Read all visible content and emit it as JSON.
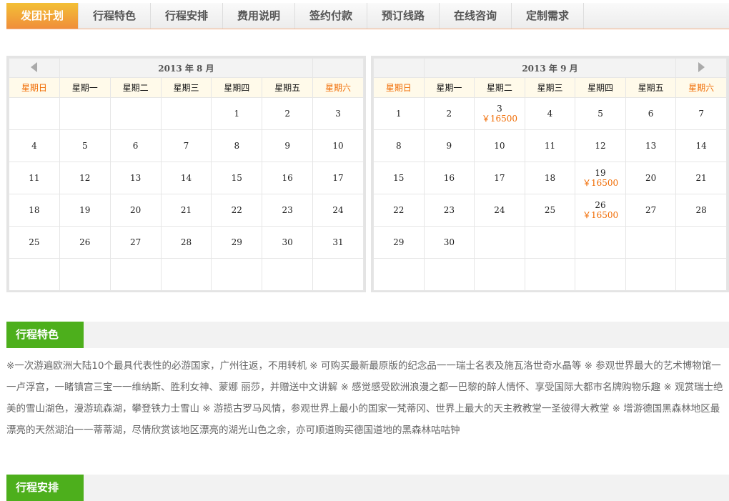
{
  "tabs": [
    "发团计划",
    "行程特色",
    "行程安排",
    "费用说明",
    "签约付款",
    "预订线路",
    "在线咨询",
    "定制需求"
  ],
  "weekdays": [
    "星期日",
    "星期一",
    "星期二",
    "星期三",
    "星期四",
    "星期五",
    "星期六"
  ],
  "calendars": [
    {
      "title": "2013 年  8 月",
      "nav": "prev",
      "start": 4,
      "days": 31,
      "prices": {}
    },
    {
      "title": "2013 年  9 月",
      "nav": "next",
      "start": 0,
      "days": 30,
      "prices": {
        "3": "￥16500",
        "19": "￥16500",
        "26": "￥16500"
      }
    }
  ],
  "colors": {
    "accent": "#f08e3a",
    "section": "#4daf1c",
    "weekend": "#f06a00"
  },
  "sections": {
    "features_title": "行程特色",
    "schedule_title": "行程安排"
  },
  "features_text": "※一次游遍欧洲大陆10个最具代表性的必游国家，广州往返，不用转机 ※ 可购买最新最原版的纪念品一一瑞士名表及施瓦洛世奇水晶等 ※ 参观世界最大的艺术博物馆一一卢浮宫，一睹镇宫三宝一一维纳斯、胜利女神、蒙娜 丽莎，并赠送中文讲解 ※ 感觉感受欧洲浪漫之都一巴黎的醉人情怀、享受国际大都市名牌购物乐趣 ※ 观赏瑞士绝美的雪山湖色，漫游琉森湖，攀登铁力士雪山 ※ 游揽古罗马风情，参观世界上最小的国家一梵蒂冈、世界上最大的天主教教堂一圣彼得大教堂 ※ 增游德国黑森林地区最漂亮的天然湖泊一一蒂蒂湖，尽情欣赏该地区漂亮的湖光山色之余，亦可顺道购买德国道地的黑森林咕咕钟"
}
